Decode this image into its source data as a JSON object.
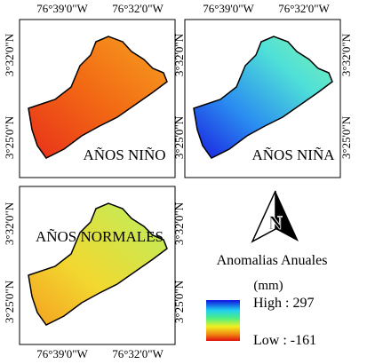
{
  "coordinates": {
    "lon_west": "76°39'0\"W",
    "lon_east": "76°32'0\"W",
    "lat_north": "3°32'0\"N",
    "lat_south": "3°25'0\"N"
  },
  "panels": [
    {
      "label": "AÑOS NIÑO"
    },
    {
      "label": "AÑOS NIÑA"
    },
    {
      "label": "AÑOS NORMALES"
    }
  ],
  "north_arrow": "N",
  "legend": {
    "title": "Anomalias Anuales",
    "unit": "(mm)",
    "high": "High : 297",
    "low": "Low : -161"
  }
}
